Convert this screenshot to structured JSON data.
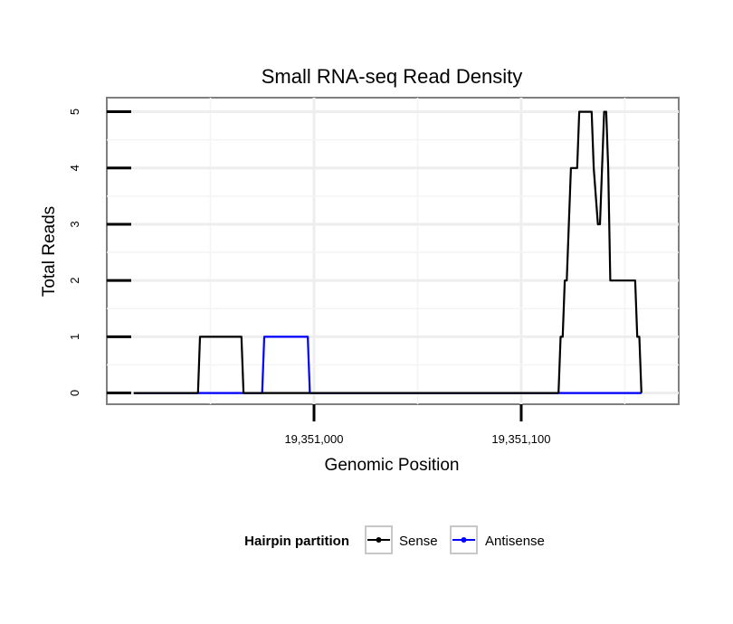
{
  "chart_data": {
    "type": "line",
    "title": "Small RNA-seq Read Density",
    "xlabel": "Genomic Position",
    "ylabel": "Total Reads",
    "xlim": [
      19350900,
      19351176
    ],
    "ylim": [
      -0.2,
      5.25
    ],
    "xticks": [
      19351000,
      19351100
    ],
    "xtick_labels": [
      "19,351,000",
      "19,351,100"
    ],
    "yticks": [
      0,
      1,
      2,
      3,
      4,
      5
    ],
    "ytick_labels": [
      "0",
      "1",
      "2",
      "3",
      "4",
      "5"
    ],
    "grid": true,
    "legend": {
      "title": "Hairpin partition",
      "position": "bottom",
      "entries": [
        "Sense",
        "Antisense"
      ]
    },
    "series": [
      {
        "name": "Sense",
        "color": "#000000",
        "x": [
          19350913,
          19350944,
          19350945,
          19350965,
          19350966,
          19351118,
          19351119,
          19351120,
          19351121,
          19351122,
          19351123,
          19351124,
          19351125,
          19351127,
          19351128,
          19351134,
          19351135,
          19351137,
          19351138,
          19351140,
          19351141,
          19351142,
          19351143,
          19351155,
          19351156,
          19351157,
          19351158
        ],
        "values": [
          0,
          0,
          1,
          1,
          0,
          0,
          1,
          1,
          2,
          2,
          3,
          4,
          4,
          4,
          5,
          5,
          4,
          3,
          3,
          5,
          5,
          4,
          2,
          2,
          1,
          1,
          0
        ]
      },
      {
        "name": "Antisense",
        "color": "#0000ff",
        "x": [
          19350913,
          19350975,
          19350976,
          19350997,
          19350998,
          19351158
        ],
        "values": [
          0,
          0,
          1,
          1,
          0,
          0
        ]
      }
    ]
  }
}
